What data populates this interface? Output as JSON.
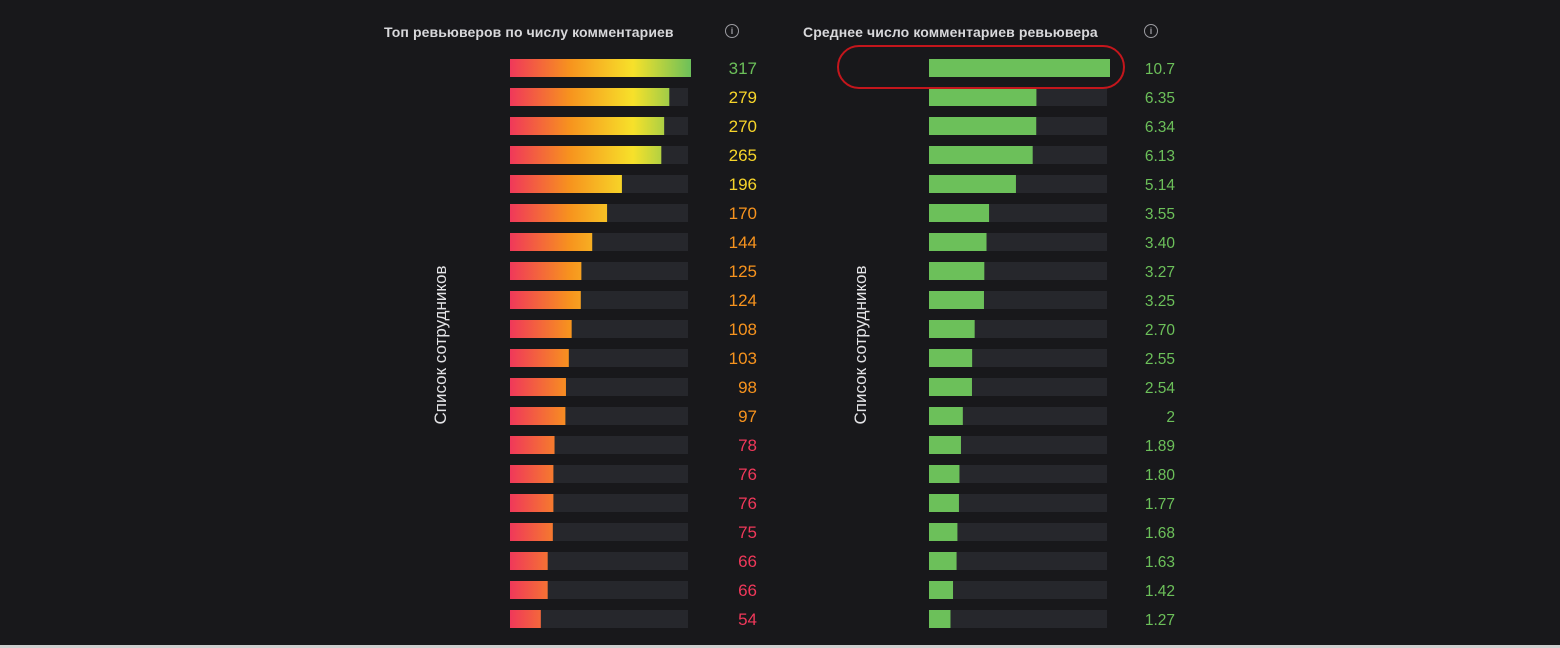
{
  "colors": {
    "background": "#18181b",
    "track": "#26272c",
    "gradient_start": "#f0385a",
    "gradient_mid": "#f7931e",
    "gradient_yellow": "#f7e12a",
    "gradient_end": "#6cc05a",
    "green_bar": "#6cc05a",
    "label_red": "#f0385a",
    "label_orange": "#f7931e",
    "label_yellow": "#f7d52a",
    "label_green": "#6cc05a",
    "highlight": "#c4161c"
  },
  "left": {
    "title": "Топ ревьюверов по числу комментариев",
    "axis_label": "Список сотрудников",
    "info_icon": "info-icon"
  },
  "right": {
    "title": "Среднее число комментариев ревьювера",
    "axis_label": "Список сотрудников",
    "info_icon": "info-icon"
  },
  "chart_data": [
    {
      "type": "bar",
      "orientation": "horizontal",
      "title": "Топ ревьюверов по числу комментариев",
      "ylabel": "Список сотрудников",
      "values": [
        317,
        279,
        270,
        265,
        196,
        170,
        144,
        125,
        124,
        108,
        103,
        98,
        97,
        78,
        76,
        76,
        75,
        66,
        66,
        54
      ],
      "labels": [
        "317",
        "279",
        "270",
        "265",
        "196",
        "170",
        "144",
        "125",
        "124",
        "108",
        "103",
        "98",
        "97",
        "78",
        "76",
        "76",
        "75",
        "66",
        "66",
        "54"
      ],
      "xlim": [
        0,
        317
      ],
      "color_scale": "red-orange-yellow-green gradient by value"
    },
    {
      "type": "bar",
      "orientation": "horizontal",
      "title": "Среднее число комментариев ревьювера",
      "ylabel": "Список сотрудников",
      "values": [
        10.7,
        6.35,
        6.34,
        6.13,
        5.14,
        3.55,
        3.4,
        3.27,
        3.25,
        2.7,
        2.55,
        2.54,
        2,
        1.89,
        1.8,
        1.77,
        1.68,
        1.63,
        1.42,
        1.27
      ],
      "labels": [
        "10.7",
        "6.35",
        "6.34",
        "6.13",
        "5.14",
        "3.55",
        "3.40",
        "3.27",
        "3.25",
        "2.70",
        "2.55",
        "2.54",
        "2",
        "1.89",
        "1.80",
        "1.77",
        "1.68",
        "1.63",
        "1.42",
        "1.27"
      ],
      "xlim": [
        0,
        10.7
      ],
      "highlighted_index": 0
    }
  ]
}
